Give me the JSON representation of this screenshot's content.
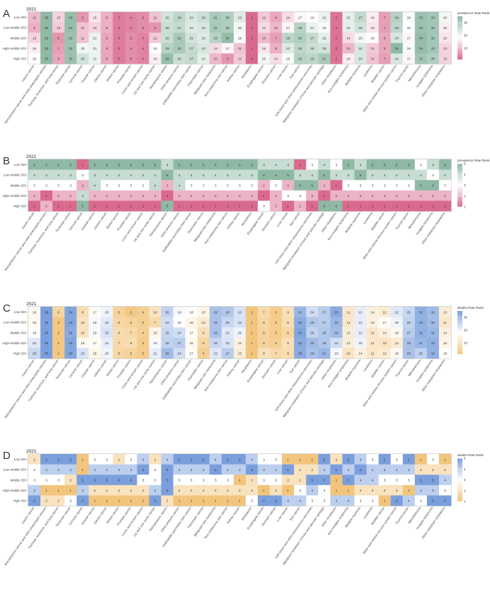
{
  "chart_data": [
    {
      "type": "heatmap",
      "panel_label": "A",
      "title": "2021",
      "legend_title": "prevalence Rate Rank",
      "legend_ticks": [
        "30",
        "20",
        "10"
      ],
      "colors": {
        "low": "#d96a8e",
        "mid": "#ffffff",
        "high": "#8fb9a5"
      },
      "value_range": [
        1,
        35
      ],
      "rows": [
        "Low SDI",
        "Low-middle SDI",
        "Middle SDI",
        "High-middle SDI",
        "High SDI"
      ],
      "columns": [
        "Larynx cancer",
        "Nasopharynx cancer and other pharyngeal cancers",
        "Tracheal, bronchus, and lung cancer",
        "Testicular cancer",
        "Cervical cancer",
        "Ovarian cancer",
        "Uterine cancer",
        "Breast cancer",
        "Prostate cancer",
        "Colon and rectum cancer",
        "Lip and oral cavity cancer",
        "Nasopharynx cancer",
        "Other pharynx cancer",
        "Gallbladder and biliary tract cancer",
        "Pancreatic cancer",
        "Malignant skin melanoma",
        "Non-melanoma skin cancer",
        "Kidney cancer",
        "Neoplasms",
        "Esophageal cancer",
        "Stomach cancer",
        "Liver cancer",
        "Eye cancer",
        "Soft tissue and other extraosseous sarcomas",
        "Malignant neoplasm of bone and articular cartilage",
        "Other neoplasms",
        "Non-Hodgkin lymphoma",
        "Multiple myeloma",
        "Leukemia",
        "Bladder cancer",
        "Brain and central nervous system cancer",
        "Thyroid cancer",
        "Mesothelioma",
        "Hodgkin lymphoma",
        "Other malignant neoplasms"
      ],
      "values": [
        [
          10,
          35,
          13,
          34,
          6,
          15,
          9,
          3,
          4,
          5,
          11,
          25,
          28,
          24,
          26,
          31,
          30,
          23,
          1,
          12,
          8,
          14,
          17,
          18,
          21,
          2,
          22,
          27,
          16,
          7,
          29,
          19,
          33,
          32,
          20
        ],
        [
          9,
          35,
          12,
          34,
          11,
          13,
          9,
          3,
          4,
          5,
          6,
          26,
          27,
          23,
          24,
          31,
          30,
          20,
          1,
          14,
          10,
          17,
          29,
          21,
          19,
          2,
          22,
          25,
          15,
          7,
          28,
          18,
          33,
          32,
          16
        ],
        [
          13,
          35,
          6,
          33,
          11,
          21,
          8,
          3,
          5,
          4,
          12,
          26,
          31,
          25,
          23,
          29,
          34,
          19,
          1,
          10,
          7,
          28,
          30,
          27,
          22,
          2,
          14,
          20,
          18,
          8,
          24,
          17,
          34,
          32,
          15
        ],
        [
          16,
          35,
          7,
          33,
          20,
          21,
          8,
          3,
          5,
          4,
          18,
          29,
          31,
          27,
          24,
          14,
          17,
          11,
          1,
          15,
          9,
          23,
          28,
          26,
          25,
          2,
          10,
          24,
          12,
          8,
          35,
          19,
          34,
          32,
          13
        ],
        [
          18,
          35,
          8,
          33,
          25,
          21,
          8,
          3,
          5,
          4,
          16,
          34,
          26,
          27,
          22,
          10,
          6,
          12,
          1,
          20,
          14,
          19,
          29,
          28,
          31,
          2,
          16,
          24,
          11,
          7,
          24,
          17,
          32,
          30,
          13
        ]
      ]
    },
    {
      "type": "heatmap",
      "panel_label": "B",
      "title": "2021",
      "legend_title": "prevalence Rate Rank",
      "legend_ticks": [
        "5",
        "4",
        "3",
        "2",
        "1"
      ],
      "colors": {
        "low": "#d96a8e",
        "mid": "#ffffff",
        "high": "#8fb9a5"
      },
      "value_range": [
        1,
        5
      ],
      "rows": [
        "Low SDI",
        "Low-middle SDI",
        "Middle SDI",
        "High-middle SDI",
        "High SDI"
      ],
      "columns": [
        "Larynx cancer",
        "Nasopharynx cancer and other pharyngeal cancers",
        "Tracheal, bronchus, and lung cancer",
        "Testicular cancer",
        "Cervical cancer",
        "Ovarian cancer",
        "Uterine cancer",
        "Breast cancer",
        "Prostate cancer",
        "Colon and rectum cancer",
        "Lip and oral cavity cancer",
        "Nasopharynx cancer",
        "Other pharynx cancer",
        "Gallbladder and biliary tract cancer",
        "Pancreatic cancer",
        "Malignant skin melanoma",
        "Non-melanoma skin cancer",
        "Kidney cancer",
        "Neoplasms",
        "Esophageal cancer",
        "Stomach cancer",
        "Liver cancer",
        "Eye cancer",
        "Soft tissue and other extraosseous sarcomas",
        "Malignant neoplasm of bone and articular cartilage",
        "Other neoplasms",
        "Non-Hodgkin lymphoma",
        "Multiple myeloma",
        "Leukemia",
        "Bladder cancer",
        "Brain and central nervous system cancer",
        "Thyroid cancer",
        "Mesothelioma",
        "Hodgkin lymphoma",
        "Other malignant neoplasms"
      ],
      "values": [
        [
          5,
          5,
          5,
          5,
          1,
          5,
          5,
          5,
          5,
          5,
          5,
          4,
          5,
          5,
          5,
          5,
          5,
          5,
          5,
          4,
          4,
          4,
          1,
          3,
          4,
          3,
          5,
          4,
          5,
          5,
          5,
          5,
          3,
          4,
          5
        ],
        [
          4,
          4,
          4,
          4,
          3,
          4,
          4,
          4,
          4,
          4,
          4,
          5,
          4,
          4,
          4,
          4,
          4,
          4,
          4,
          5,
          5,
          5,
          4,
          4,
          5,
          4,
          4,
          5,
          4,
          4,
          4,
          4,
          4,
          3,
          4
        ],
        [
          3,
          3,
          3,
          3,
          2,
          4,
          3,
          3,
          3,
          3,
          4,
          2,
          4,
          3,
          3,
          3,
          3,
          3,
          3,
          2,
          3,
          2,
          5,
          5,
          2,
          1,
          3,
          3,
          3,
          3,
          3,
          3,
          5,
          5,
          3
        ],
        [
          2,
          1,
          2,
          2,
          4,
          2,
          2,
          2,
          2,
          2,
          2,
          1,
          2,
          2,
          2,
          2,
          2,
          2,
          2,
          1,
          2,
          3,
          3,
          2,
          1,
          2,
          2,
          2,
          2,
          2,
          2,
          2,
          2,
          2,
          2
        ],
        [
          1,
          2,
          1,
          1,
          5,
          1,
          1,
          1,
          1,
          1,
          1,
          5,
          1,
          1,
          1,
          1,
          1,
          1,
          1,
          3,
          2,
          1,
          2,
          1,
          5,
          5,
          1,
          1,
          1,
          1,
          1,
          1,
          1,
          1,
          1
        ]
      ]
    },
    {
      "type": "heatmap",
      "panel_label": "C",
      "title": "2021",
      "legend_title": "deaths Rate Rank",
      "legend_ticks": [
        "30",
        "20",
        "10"
      ],
      "colors": {
        "low": "#f2c57c",
        "mid": "#ffffff",
        "high": "#7a9fdc"
      },
      "value_range": [
        1,
        35
      ],
      "rows": [
        "Low SDI",
        "Low-middle SDI",
        "Middle SDI",
        "High-middle SDI",
        "High SDI"
      ],
      "columns": [
        "Larynx cancer",
        "Nasopharynx cancer and other pharyngeal cancers",
        "Tracheal, bronchus, and lung cancer",
        "Testicular cancer",
        "Cervical cancer",
        "Ovarian cancer",
        "Uterine cancer",
        "Breast cancer",
        "Prostate cancer",
        "Colon and rectum cancer",
        "Lip and oral cavity cancer",
        "Nasopharynx cancer",
        "Other pharynx cancer",
        "Gallbladder and biliary tract cancer",
        "Pancreatic cancer",
        "Malignant skin melanoma",
        "Non-melanoma skin cancer",
        "Kidney cancer",
        "Neoplasms",
        "Esophageal cancer",
        "Stomach cancer",
        "Liver cancer",
        "Eye cancer",
        "Soft tissue and other extraosseous sarcomas",
        "Malignant neoplasm of bone and articular cartilage",
        "Other neoplasms",
        "Non-Hodgkin lymphoma",
        "Multiple myeloma",
        "Leukemia",
        "Bladder cancer",
        "Brain and central nervous system cancer",
        "Thyroid cancer",
        "Mesothelioma",
        "Hodgkin lymphoma",
        "Other malignant neoplasms"
      ],
      "values": [
        [
          16,
          35,
          6,
          34,
          8,
          17,
          20,
          5,
          2,
          4,
          10,
          26,
          19,
          18,
          15,
          29,
          28,
          23,
          1,
          7,
          3,
          9,
          31,
          24,
          27,
          33,
          11,
          21,
          14,
          12,
          22,
          25,
          32,
          30,
          13
        ],
        [
          16,
          35,
          2,
          34,
          10,
          19,
          22,
          6,
          5,
          4,
          7,
          24,
          18,
          15,
          12,
          29,
          25,
          23,
          1,
          6,
          3,
          8,
          33,
          28,
          27,
          31,
          11,
          21,
          14,
          17,
          20,
          26,
          32,
          30,
          11
        ],
        [
          18,
          35,
          2,
          33,
          10,
          19,
          23,
          8,
          7,
          4,
          15,
          25,
          24,
          17,
          9,
          29,
          22,
          20,
          1,
          5,
          3,
          6,
          34,
          26,
          28,
          30,
          13,
          21,
          11,
          14,
          16,
          27,
          32,
          31,
          14
        ],
        [
          22,
          35,
          2,
          34,
          16,
          17,
          21,
          7,
          8,
          3,
          19,
          26,
          27,
          16,
          6,
          25,
          23,
          14,
          1,
          5,
          4,
          9,
          33,
          30,
          28,
          24,
          13,
          20,
          11,
          10,
          12,
          29,
          31,
          32,
          15
        ],
        [
          25,
          35,
          2,
          34,
          23,
          15,
          20,
          6,
          5,
          3,
          21,
          30,
          24,
          17,
          4,
          22,
          27,
          13,
          1,
          9,
          7,
          8,
          33,
          29,
          31,
          19,
          10,
          14,
          11,
          12,
          16,
          29,
          26,
          32,
          18
        ]
      ]
    },
    {
      "type": "heatmap",
      "panel_label": "D",
      "title": "2021",
      "legend_title": "deaths Rate Rank",
      "legend_ticks": [
        "5",
        "4",
        "3",
        "2",
        "1"
      ],
      "colors": {
        "low": "#f2c57c",
        "mid": "#ffffff",
        "high": "#7a9fdc"
      },
      "value_range": [
        1,
        5
      ],
      "rows": [
        "Low SDI",
        "Low-middle SDI",
        "Middle SDI",
        "High-middle SDI",
        "High SDI"
      ],
      "columns": [
        "Larynx cancer",
        "Nasopharynx cancer and other pharyngeal cancers",
        "Tracheal, bronchus, and lung cancer",
        "Testicular cancer",
        "Cervical cancer",
        "Ovarian cancer",
        "Uterine cancer",
        "Breast cancer",
        "Prostate cancer",
        "Colon and rectum cancer",
        "Lip and oral cavity cancer",
        "Nasopharynx cancer",
        "Other pharynx cancer",
        "Gallbladder and biliary tract cancer",
        "Pancreatic cancer",
        "Malignant skin melanoma",
        "Non-melanoma skin cancer",
        "Kidney cancer",
        "Neoplasms",
        "Esophageal cancer",
        "Stomach cancer",
        "Liver cancer",
        "Eye cancer",
        "Soft tissue and other extraosseous sarcomas",
        "Malignant neoplasm of bone and articular cartilage",
        "Other neoplasms",
        "Non-Hodgkin lymphoma",
        "Multiple myeloma",
        "Leukemia",
        "Bladder cancer",
        "Brain and central nervous system cancer",
        "Thyroid cancer",
        "Mesothelioma",
        "Hodgkin lymphoma",
        "Other malignant neoplasms"
      ],
      "values": [
        [
          2,
          5,
          5,
          5,
          1,
          3,
          3,
          2,
          3,
          4,
          2,
          4,
          5,
          5,
          5,
          4,
          5,
          5,
          4,
          3,
          3,
          1,
          1,
          1,
          5,
          2,
          5,
          4,
          3,
          5,
          3,
          5,
          1,
          3,
          1
        ],
        [
          3,
          4,
          4,
          4,
          1,
          4,
          4,
          4,
          4,
          5,
          3,
          5,
          4,
          4,
          4,
          5,
          4,
          4,
          5,
          4,
          4,
          5,
          2,
          2,
          4,
          5,
          4,
          5,
          4,
          4,
          4,
          4,
          2,
          2,
          2
        ],
        [
          3,
          3,
          3,
          2,
          5,
          5,
          5,
          5,
          5,
          3,
          3,
          5,
          3,
          3,
          3,
          3,
          3,
          1,
          2,
          3,
          3,
          2,
          2,
          5,
          5,
          1,
          5,
          4,
          4,
          3,
          3,
          3,
          5,
          5,
          4
        ],
        [
          4,
          1,
          1,
          1,
          4,
          2,
          2,
          2,
          2,
          2,
          4,
          5,
          2,
          2,
          2,
          2,
          2,
          2,
          2,
          1,
          2,
          1,
          3,
          4,
          3,
          1,
          1,
          2,
          2,
          2,
          2,
          1,
          4,
          4,
          3
        ],
        [
          5,
          2,
          2,
          3,
          5,
          1,
          1,
          1,
          1,
          1,
          5,
          2,
          1,
          1,
          1,
          1,
          1,
          1,
          3,
          5,
          5,
          4,
          4,
          3,
          3,
          4,
          4,
          3,
          3,
          1,
          5,
          4,
          3,
          5,
          5
        ]
      ]
    }
  ]
}
